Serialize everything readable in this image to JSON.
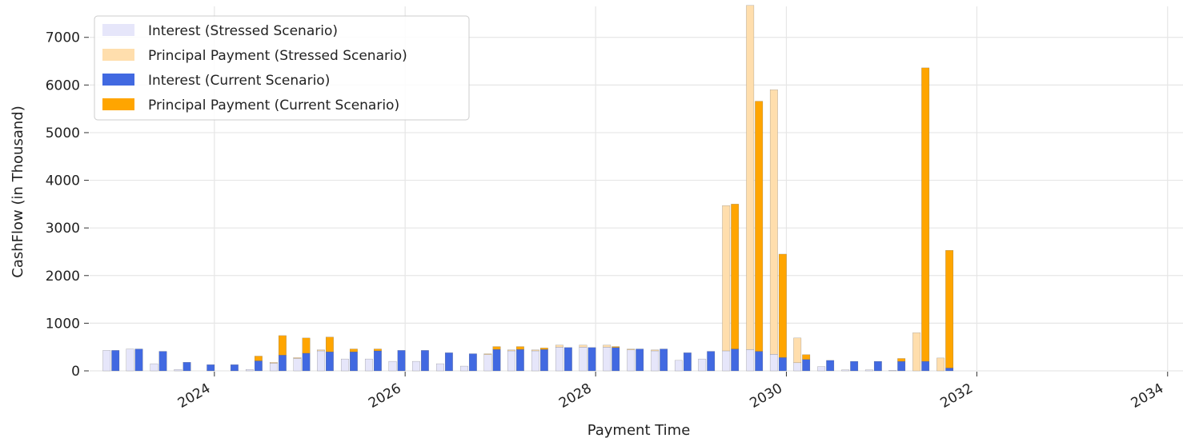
{
  "chart_data": {
    "type": "bar",
    "title": "",
    "xlabel": "Payment Time",
    "ylabel": "CashFlow (in Thousand)",
    "x_ticks": [
      "2024",
      "2026",
      "2028",
      "2030",
      "2032",
      "2034"
    ],
    "y_ticks": [
      "0",
      "1000",
      "2000",
      "3000",
      "4000",
      "5000",
      "6000",
      "7000"
    ],
    "ylim": [
      0,
      7650
    ],
    "xlim": [
      "2022-09-10",
      "2034-03-01"
    ],
    "grid": true,
    "stacked": true,
    "legend_position": "top-left",
    "dates": [
      "2022-12-01",
      "2023-03-01",
      "2023-06-01",
      "2023-09-01",
      "2023-12-01",
      "2024-03-01",
      "2024-06-01",
      "2024-09-01",
      "2024-12-01",
      "2025-03-01",
      "2025-06-01",
      "2025-09-01",
      "2025-12-01",
      "2026-03-01",
      "2026-06-01",
      "2026-09-01",
      "2026-12-01",
      "2027-03-01",
      "2027-06-01",
      "2027-09-01",
      "2027-12-01",
      "2028-03-01",
      "2028-06-01",
      "2028-09-01",
      "2028-12-01",
      "2029-03-01",
      "2029-06-01",
      "2029-09-01",
      "2029-12-01",
      "2030-03-01",
      "2030-06-01",
      "2030-09-01",
      "2030-12-01",
      "2031-03-01",
      "2031-06-01",
      "2031-09-01"
    ],
    "series": [
      {
        "name": "Interest (Stressed Scenario)",
        "group": "stressed",
        "color": "#e6e6fa",
        "values": [
          430,
          460,
          150,
          30,
          0,
          0,
          30,
          160,
          260,
          420,
          250,
          250,
          200,
          200,
          150,
          100,
          340,
          420,
          420,
          500,
          500,
          500,
          440,
          420,
          220,
          250,
          420,
          450,
          350,
          170,
          90,
          20,
          20,
          10,
          0,
          0
        ]
      },
      {
        "name": "Principal Payment (Stressed Scenario)",
        "group": "stressed",
        "color": "#ffdead",
        "values": [
          0,
          0,
          0,
          0,
          0,
          0,
          0,
          20,
          20,
          20,
          0,
          0,
          0,
          0,
          0,
          0,
          20,
          20,
          20,
          40,
          40,
          40,
          20,
          20,
          0,
          0,
          3050,
          7220,
          5550,
          520,
          0,
          0,
          0,
          0,
          800,
          270
        ]
      },
      {
        "name": "Interest (Current Scenario)",
        "group": "current",
        "color": "#4169e1",
        "values": [
          430,
          460,
          410,
          180,
          130,
          130,
          210,
          330,
          370,
          400,
          400,
          420,
          430,
          430,
          380,
          360,
          450,
          450,
          450,
          490,
          490,
          490,
          460,
          460,
          380,
          410,
          460,
          410,
          280,
          240,
          220,
          200,
          200,
          200,
          200,
          60
        ]
      },
      {
        "name": "Principal Payment (Current Scenario)",
        "group": "current",
        "color": "#ffa500",
        "values": [
          0,
          0,
          0,
          0,
          0,
          0,
          100,
          410,
          320,
          310,
          60,
          40,
          0,
          0,
          0,
          0,
          60,
          60,
          30,
          0,
          0,
          20,
          0,
          0,
          0,
          0,
          3040,
          5250,
          2170,
          100,
          0,
          0,
          0,
          60,
          6160,
          2470
        ]
      }
    ]
  }
}
